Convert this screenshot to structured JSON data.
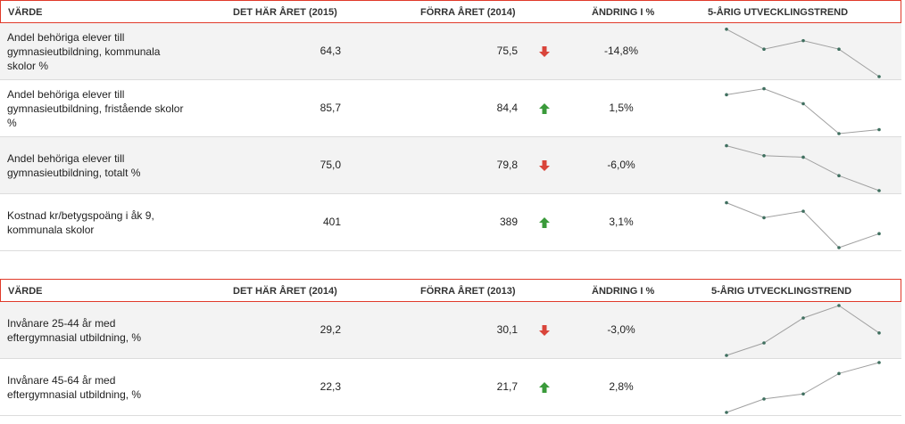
{
  "tables": [
    {
      "header": {
        "varde": "VÄRDE",
        "current": "DET HÄR ÅRET (2015)",
        "previous": "FÖRRA ÅRET (2014)",
        "change": "ÄNDRING I %",
        "trend": "5-ÅRIG UTVECKLINGSTREND"
      },
      "rows": [
        {
          "label": "Andel behöriga elever till gymnasieutbildning, kommunala skolor %",
          "current": "64,3",
          "previous": "75,5",
          "direction": "down",
          "change": "-14,8%",
          "trend": [
            0.95,
            0.55,
            0.72,
            0.55,
            0.0
          ]
        },
        {
          "label": "Andel behöriga elever till gymnasieutbildning, fristående skolor %",
          "current": "85,7",
          "previous": "84,4",
          "direction": "up",
          "change": "1,5%",
          "trend": [
            0.78,
            0.9,
            0.6,
            0.0,
            0.08
          ]
        },
        {
          "label": "Andel behöriga elever till gymnasieutbildning, totalt %",
          "current": "75,0",
          "previous": "79,8",
          "direction": "down",
          "change": "-6,0%",
          "trend": [
            0.9,
            0.7,
            0.67,
            0.3,
            0.0
          ]
        },
        {
          "label": "Kostnad kr/betygspoäng i åk 9, kommunala skolor",
          "current": "401",
          "previous": "389",
          "direction": "up",
          "change": "3,1%",
          "trend": [
            0.9,
            0.6,
            0.73,
            0.0,
            0.28
          ]
        }
      ]
    },
    {
      "header": {
        "varde": "VÄRDE",
        "current": "DET HÄR ÅRET (2014)",
        "previous": "FÖRRA ÅRET (2013)",
        "change": "ÄNDRING I %",
        "trend": "5-ÅRIG UTVECKLINGSTREND"
      },
      "rows": [
        {
          "label": "Invånare 25-44 år med eftergymnasial utbildning, %",
          "current": "29,2",
          "previous": "30,1",
          "direction": "down",
          "change": "-3,0%",
          "trend": [
            0.0,
            0.25,
            0.75,
            1.0,
            0.45
          ]
        },
        {
          "label": "Invånare 45-64 år med eftergymnasial utbildning, %",
          "current": "22,3",
          "previous": "21,7",
          "direction": "up",
          "change": "2,8%",
          "trend": [
            0.0,
            0.27,
            0.37,
            0.78,
            1.0
          ]
        }
      ]
    }
  ],
  "colors": {
    "up": "#3a9a3a",
    "down": "#d9443a",
    "line": "#a0a0a0",
    "dot": "#3f6f5f"
  }
}
